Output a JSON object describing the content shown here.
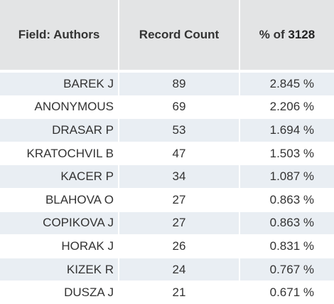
{
  "headers": {
    "field": "Field: Authors",
    "count": "Record Count",
    "pct_prefix": "% of",
    "pct_total": "3128"
  },
  "rows": [
    {
      "name": "BAREK J",
      "count": "89",
      "pct": "2.845 %"
    },
    {
      "name": "ANONYMOUS",
      "count": "69",
      "pct": "2.206 %"
    },
    {
      "name": "DRASAR P",
      "count": "53",
      "pct": "1.694 %"
    },
    {
      "name": "KRATOCHVIL B",
      "count": "47",
      "pct": "1.503 %"
    },
    {
      "name": "KACER P",
      "count": "34",
      "pct": "1.087 %"
    },
    {
      "name": "BLAHOVA O",
      "count": "27",
      "pct": "0.863 %"
    },
    {
      "name": "COPIKOVA J",
      "count": "27",
      "pct": "0.863 %"
    },
    {
      "name": "HORAK J",
      "count": "26",
      "pct": "0.831 %"
    },
    {
      "name": "KIZEK R",
      "count": "24",
      "pct": "0.767 %"
    },
    {
      "name": "DUSZA J",
      "count": "21",
      "pct": "0.671 %"
    }
  ]
}
